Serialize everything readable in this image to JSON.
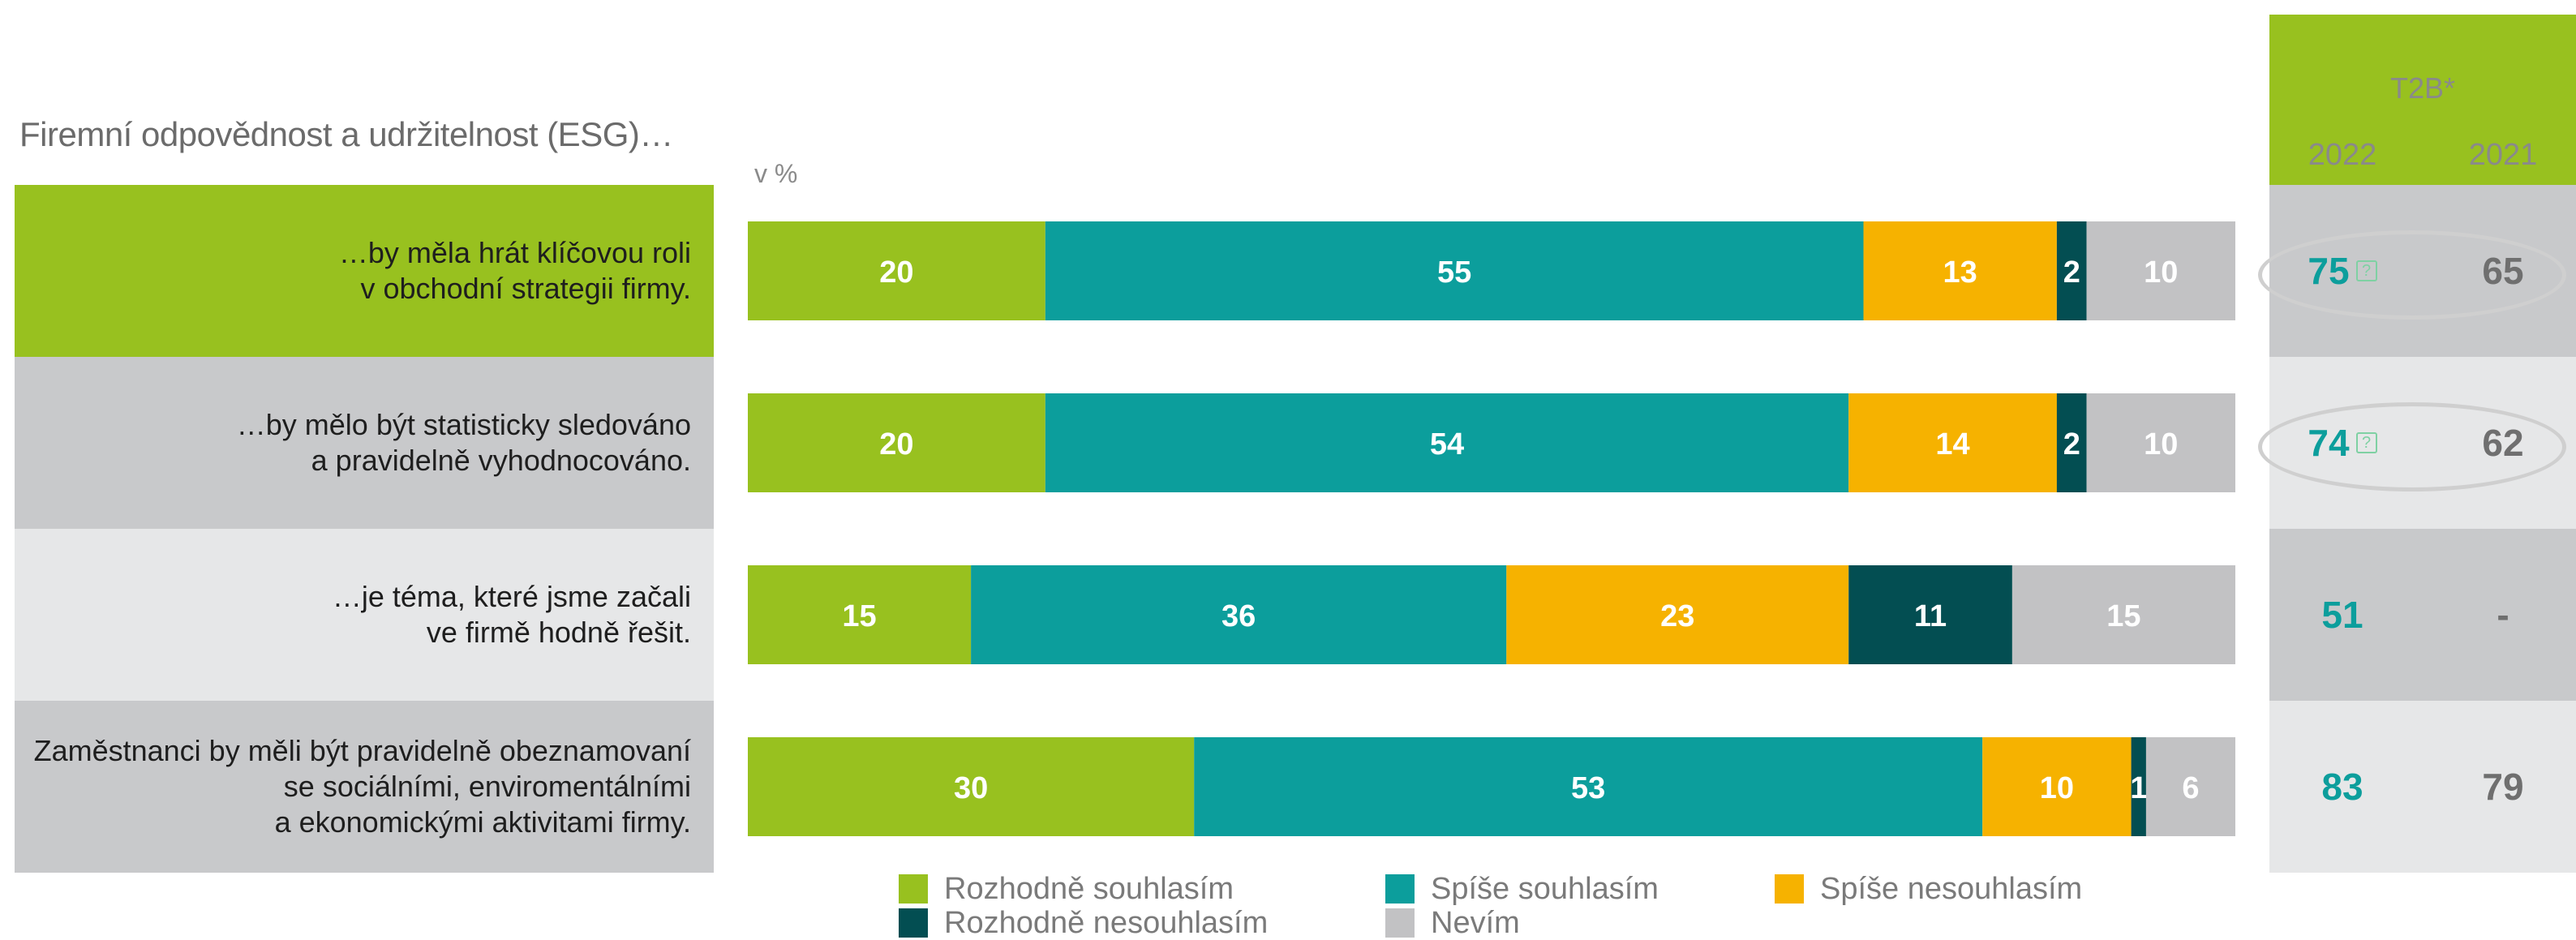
{
  "heading": "Firemní odpovědnost a udržitelnost (ESG)…",
  "unit_label": "v %",
  "colors": {
    "rozhodne_souhlasim": "#98c11f",
    "spise_souhlasim": "#0c9e9c",
    "spise_nesouhlasim": "#f6b200",
    "rozhodne_nesouhlasim": "#034e52",
    "nevim": "#c2c2c4",
    "t2b_2022": "#0c9e9c",
    "t2b_2021": "#6f6f6f"
  },
  "t2b": {
    "title": "T2B*",
    "year_2022": "2022",
    "year_2021": "2021",
    "rows": [
      {
        "v2022": "75",
        "v2021": "65",
        "highlighted": true
      },
      {
        "v2022": "74",
        "v2021": "62",
        "highlighted": true
      },
      {
        "v2022": "51",
        "v2021": "-",
        "highlighted": false
      },
      {
        "v2022": "83",
        "v2021": "79",
        "highlighted": false
      }
    ]
  },
  "chart_data": {
    "type": "bar",
    "orientation": "horizontal",
    "stacked": true,
    "categories": [
      "…by měla hrát klíčovou roli\nv obchodní strategii firmy.",
      "…by mělo být statisticky sledováno\na pravidelně vyhodnocováno.",
      "…je téma, které jsme začali\nve firmě hodně řešit.",
      "Zaměstnanci by měli být pravidelně obeznamovaní\nse sociálními, enviromentálními\na ekonomickými aktivitami firmy."
    ],
    "series": [
      {
        "name": "Rozhodně souhlasím",
        "values": [
          20,
          20,
          15,
          30
        ]
      },
      {
        "name": "Spíše souhlasím",
        "values": [
          55,
          54,
          36,
          53
        ]
      },
      {
        "name": "Spíše nesouhlasím",
        "values": [
          13,
          14,
          23,
          10
        ]
      },
      {
        "name": "Rozhodně nesouhlasím",
        "values": [
          2,
          2,
          11,
          1
        ]
      },
      {
        "name": "Nevím",
        "values": [
          10,
          10,
          15,
          6
        ]
      }
    ],
    "legend_position": "bottom"
  }
}
